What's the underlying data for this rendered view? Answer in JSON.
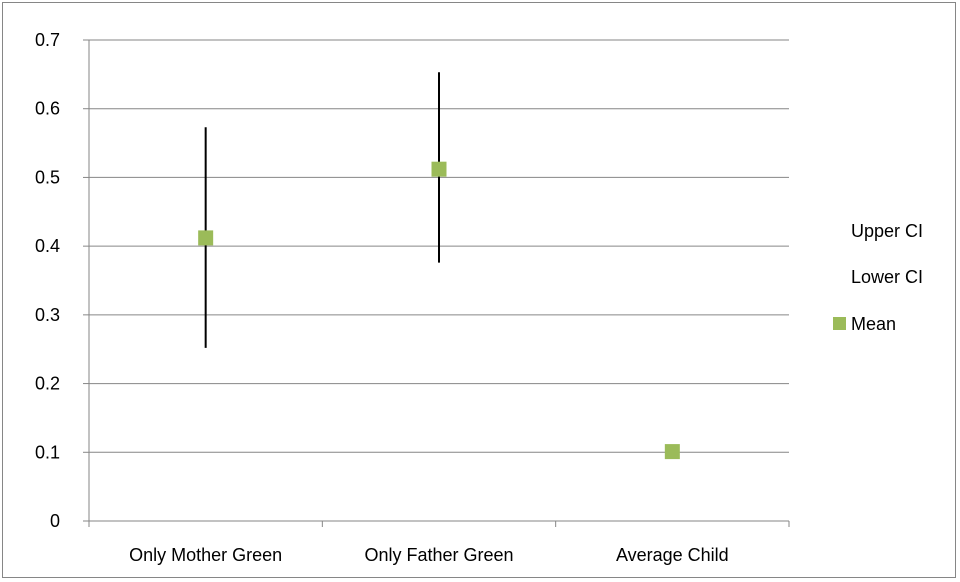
{
  "colors": {
    "mean_marker": "#9BBB59",
    "error_bar": "#000000",
    "gridline": "#868686",
    "axis": "#868686",
    "frame": "#868686"
  },
  "chart_data": {
    "type": "scatter",
    "title": "",
    "xlabel": "",
    "ylabel": "",
    "ylim": [
      0,
      0.7
    ],
    "yticks": [
      "0",
      "0.1",
      "0.2",
      "0.3",
      "0.4",
      "0.5",
      "0.6",
      "0.7"
    ],
    "grid": true,
    "legend_placement": "right",
    "categories": [
      "Only Mother Green",
      "Only Father Green",
      "Average Child"
    ],
    "series": [
      {
        "name": "Upper CI",
        "values": [
          0.573,
          0.653,
          null
        ]
      },
      {
        "name": "Lower CI",
        "values": [
          0.252,
          0.376,
          null
        ]
      },
      {
        "name": "Mean",
        "values": [
          0.412,
          0.512,
          0.101
        ]
      }
    ]
  }
}
